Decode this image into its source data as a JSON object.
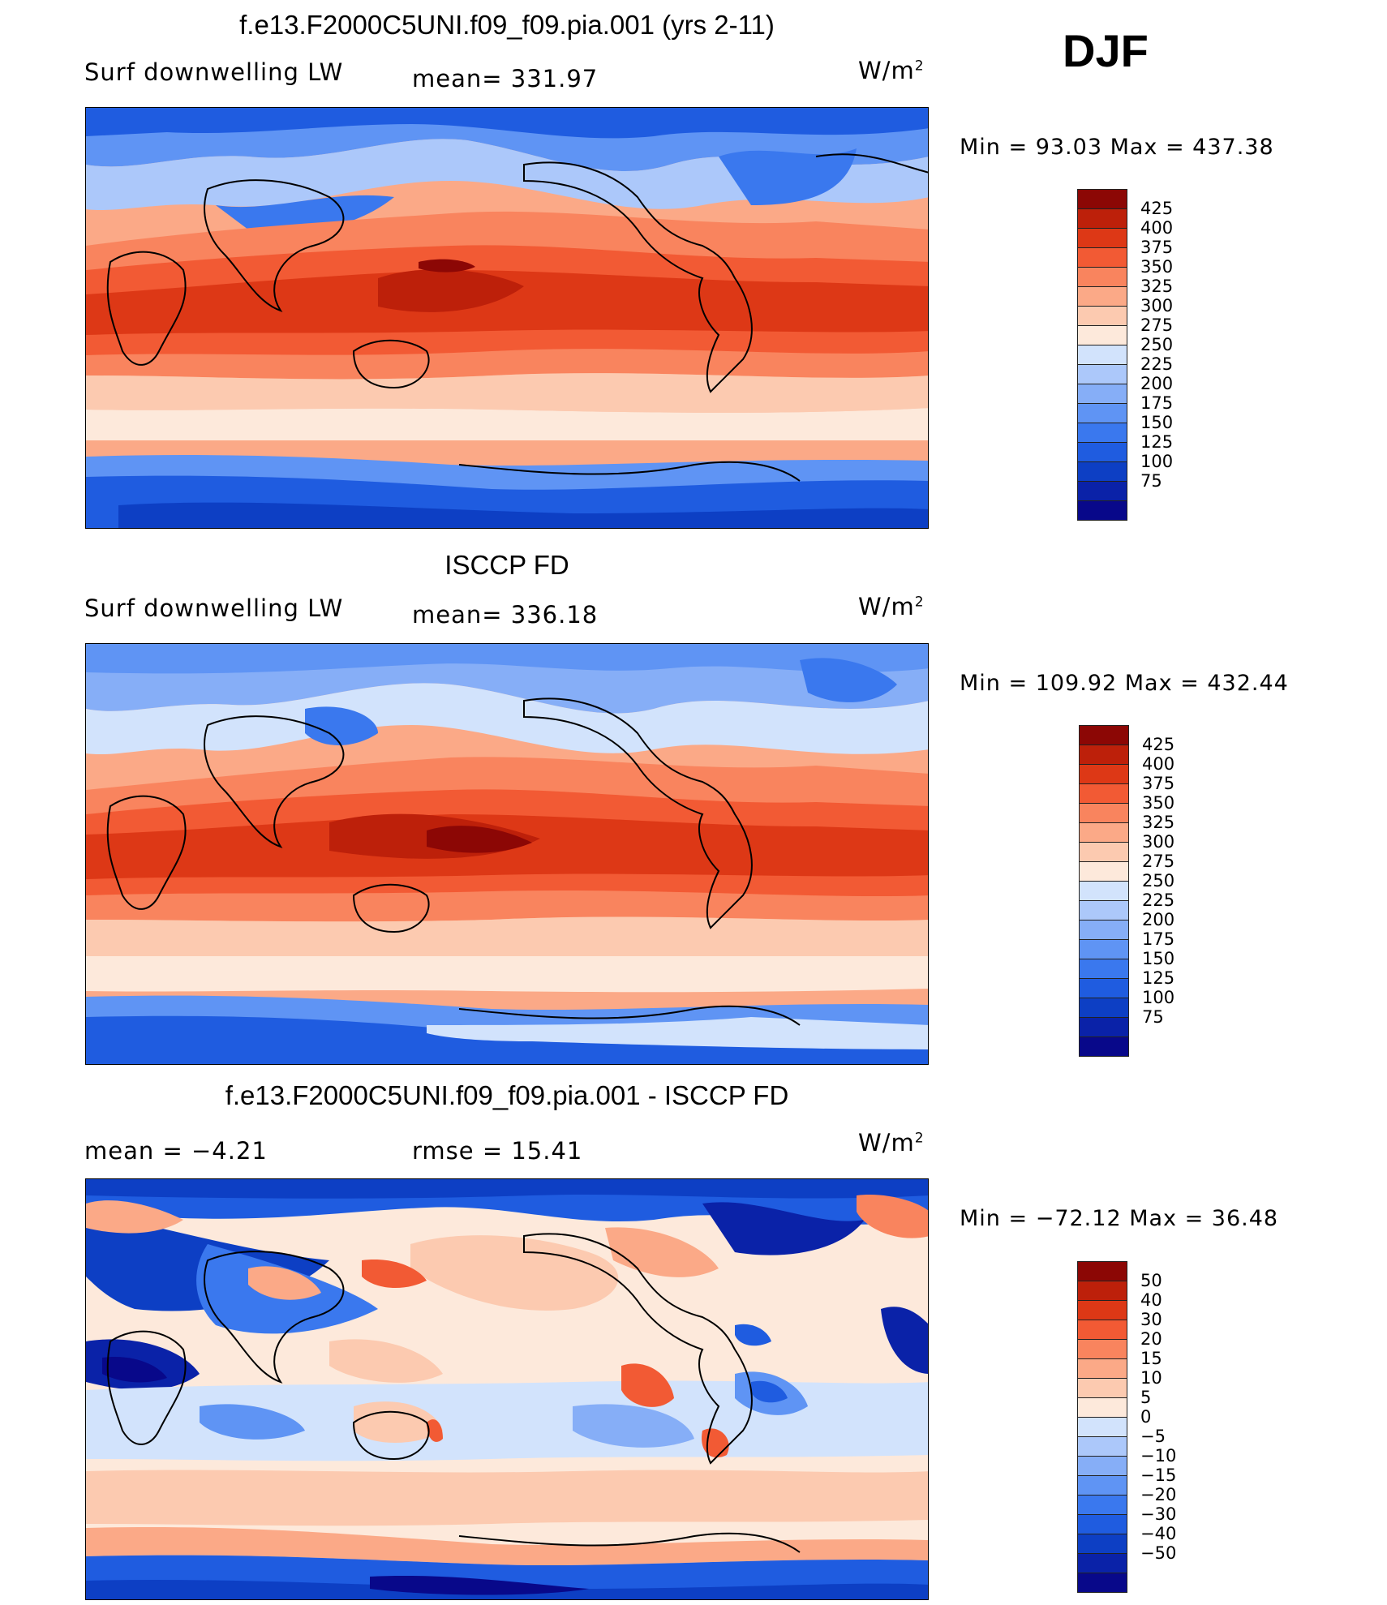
{
  "season": "DJF",
  "units_base": "W/m",
  "units_exp": "2",
  "panels": [
    {
      "title": "f.e13.F2000C5UNI.f09_f09.pia.001 (yrs 2-11)",
      "left_label": "Surf downwelling LW",
      "center_label": "mean= 331.97",
      "minmax": "Min =   93.03 Max = 437.38",
      "palette": [
        "#08088a",
        "#0a22a8",
        "#0d3fc4",
        "#1f5ce0",
        "#3a78ee",
        "#5f94f4",
        "#86aef7",
        "#acc8fa",
        "#d2e3fc",
        "#fde9db",
        "#fccab0",
        "#fba987",
        "#f9845e",
        "#f25a34",
        "#dd3816",
        "#bd200a",
        "#8c0705"
      ],
      "levels": [
        "425",
        "400",
        "375",
        "350",
        "325",
        "300",
        "275",
        "250",
        "225",
        "200",
        "175",
        "150",
        "125",
        "100",
        "75"
      ]
    },
    {
      "title": "ISCCP FD",
      "left_label": "Surf downwelling LW",
      "center_label": "mean= 336.18",
      "minmax": "Min = 109.92 Max = 432.44",
      "palette": [
        "#08088a",
        "#0a22a8",
        "#0d3fc4",
        "#1f5ce0",
        "#3a78ee",
        "#5f94f4",
        "#86aef7",
        "#acc8fa",
        "#d2e3fc",
        "#fde9db",
        "#fccab0",
        "#fba987",
        "#f9845e",
        "#f25a34",
        "#dd3816",
        "#bd200a",
        "#8c0705"
      ],
      "levels": [
        "425",
        "400",
        "375",
        "350",
        "325",
        "300",
        "275",
        "250",
        "225",
        "200",
        "175",
        "150",
        "125",
        "100",
        "75"
      ]
    },
    {
      "title": "f.e13.F2000C5UNI.f09_f09.pia.001 - ISCCP FD",
      "left_label": "mean =   −4.21",
      "center_label": "rmse =   15.41",
      "minmax": "Min = −72.12 Max =   36.48",
      "palette": [
        "#08088a",
        "#0a22a8",
        "#0d3fc4",
        "#1f5ce0",
        "#3a78ee",
        "#5f94f4",
        "#86aef7",
        "#acc8fa",
        "#d2e3fc",
        "#fde9db",
        "#fccab0",
        "#fba987",
        "#f9845e",
        "#f25a34",
        "#dd3816",
        "#bd200a",
        "#8c0705"
      ],
      "levels": [
        "50",
        "40",
        "30",
        "20",
        "15",
        "10",
        "5",
        "0",
        "−5",
        "−10",
        "−15",
        "−20",
        "−30",
        "−40",
        "−50"
      ]
    }
  ]
}
